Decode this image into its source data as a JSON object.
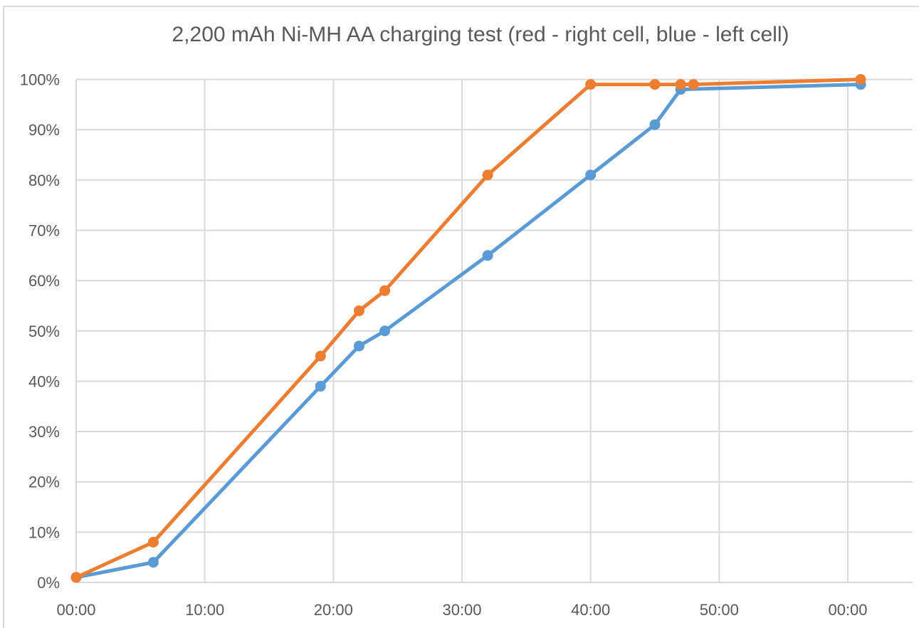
{
  "title": "2,200 mAh Ni-MH AA charging test (red - right cell, blue - left cell)",
  "chart_data": {
    "type": "line",
    "title": "2,200 mAh Ni-MH AA charging test (red - right cell, blue - left cell)",
    "xlabel": "",
    "ylabel": "",
    "x_unit": "time (mm:ss elapsed, minutes)",
    "xlim": [
      0,
      65
    ],
    "ylim": [
      0,
      100
    ],
    "grid": true,
    "legend_position": "none (series identified in title)",
    "x_ticks": [
      {
        "minute": 0,
        "label": "00:00"
      },
      {
        "minute": 10,
        "label": "10:00"
      },
      {
        "minute": 20,
        "label": "20:00"
      },
      {
        "minute": 30,
        "label": "30:00"
      },
      {
        "minute": 40,
        "label": "40:00"
      },
      {
        "minute": 50,
        "label": "50:00"
      },
      {
        "minute": 60,
        "label": "00:00"
      }
    ],
    "y_ticks": [
      {
        "value": 0,
        "label": "0%"
      },
      {
        "value": 10,
        "label": "10%"
      },
      {
        "value": 20,
        "label": "20%"
      },
      {
        "value": 30,
        "label": "30%"
      },
      {
        "value": 40,
        "label": "40%"
      },
      {
        "value": 50,
        "label": "50%"
      },
      {
        "value": 60,
        "label": "60%"
      },
      {
        "value": 70,
        "label": "70%"
      },
      {
        "value": 80,
        "label": "80%"
      },
      {
        "value": 90,
        "label": "90%"
      },
      {
        "value": 100,
        "label": "100%"
      }
    ],
    "series": [
      {
        "name": "left cell (blue)",
        "color": "#5b9bd5",
        "points": [
          [
            0,
            1
          ],
          [
            6,
            4
          ],
          [
            19,
            39
          ],
          [
            22,
            47
          ],
          [
            24,
            50
          ],
          [
            32,
            65
          ],
          [
            40,
            81
          ],
          [
            45,
            91
          ],
          [
            47,
            98
          ],
          [
            61,
            99
          ]
        ]
      },
      {
        "name": "right cell (red/orange)",
        "color": "#ed7d31",
        "points": [
          [
            0,
            1
          ],
          [
            6,
            8
          ],
          [
            19,
            45
          ],
          [
            22,
            54
          ],
          [
            24,
            58
          ],
          [
            32,
            81
          ],
          [
            40,
            99
          ],
          [
            45,
            99
          ],
          [
            47,
            99
          ],
          [
            48,
            99
          ],
          [
            61,
            100
          ]
        ]
      }
    ],
    "colors": {
      "gridline": "#d9d9d9",
      "axis_text": "#595959",
      "title_text": "#595959",
      "chart_border": "#d9d9d9"
    }
  }
}
